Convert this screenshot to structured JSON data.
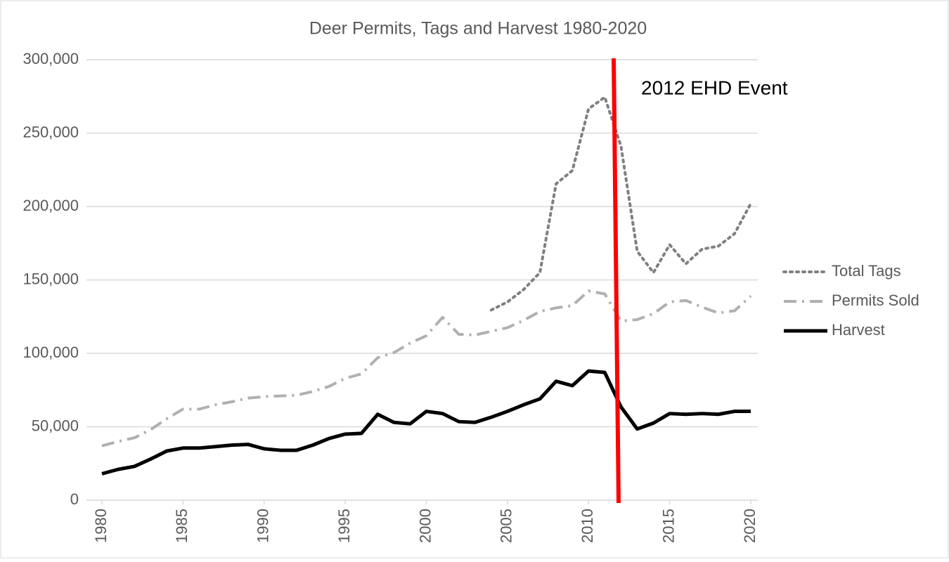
{
  "chart_data": {
    "type": "line",
    "title": "Deer Permits, Tags and Harvest 1980-2020",
    "annotation": "2012 EHD Event",
    "x": [
      1980,
      1981,
      1982,
      1983,
      1984,
      1985,
      1986,
      1987,
      1988,
      1989,
      1990,
      1991,
      1992,
      1993,
      1994,
      1995,
      1996,
      1997,
      1998,
      1999,
      2000,
      2001,
      2002,
      2003,
      2004,
      2005,
      2006,
      2007,
      2008,
      2009,
      2010,
      2011,
      2012,
      2013,
      2014,
      2015,
      2016,
      2017,
      2018,
      2019,
      2020
    ],
    "series": [
      {
        "name": "Total Tags",
        "color": "#808080",
        "dash": "dot",
        "values": [
          null,
          null,
          null,
          null,
          null,
          null,
          null,
          null,
          null,
          null,
          null,
          null,
          null,
          null,
          null,
          null,
          null,
          null,
          null,
          null,
          null,
          null,
          null,
          null,
          129500,
          135000,
          143500,
          155000,
          215500,
          224500,
          266500,
          274500,
          241000,
          169500,
          155000,
          174000,
          161000,
          171000,
          173000,
          181500,
          202000
        ]
      },
      {
        "name": "Permits Sold",
        "color": "#b0b0b0",
        "dash": "dashdot",
        "values": [
          37000,
          40000,
          42500,
          48000,
          55500,
          62000,
          62000,
          65000,
          67000,
          69500,
          70500,
          71000,
          71500,
          74000,
          77500,
          83000,
          86000,
          97000,
          100500,
          107000,
          112000,
          124500,
          113000,
          112500,
          115000,
          117500,
          122500,
          128500,
          131000,
          132500,
          142500,
          140500,
          122000,
          123000,
          127000,
          135000,
          136000,
          131500,
          127500,
          129000,
          139000
        ]
      },
      {
        "name": "Harvest",
        "color": "#000000",
        "dash": "solid",
        "values": [
          18000,
          21000,
          23000,
          28000,
          33500,
          35500,
          35500,
          36500,
          37500,
          38000,
          35000,
          34000,
          34000,
          37500,
          42000,
          45000,
          45500,
          58500,
          53000,
          52000,
          60500,
          59000,
          53500,
          53000,
          56500,
          60500,
          65000,
          69000,
          81000,
          78000,
          88000,
          87000,
          63500,
          48500,
          52500,
          59000,
          58500,
          59000,
          58500,
          60500,
          60500
        ]
      }
    ],
    "xlim": [
      1980,
      2020
    ],
    "xticks": [
      1980,
      1985,
      1990,
      1995,
      2000,
      2005,
      2010,
      2015,
      2020
    ],
    "ylim": [
      0,
      300000
    ],
    "yticks": [
      0,
      {
        "value": 50000,
        "label": "50,000"
      },
      {
        "value": 100000,
        "label": "100,000"
      },
      {
        "value": 150000,
        "label": "150,000"
      },
      {
        "value": 200000,
        "label": "200,000"
      },
      {
        "value": 250000,
        "label": "250,000"
      },
      {
        "value": 300000,
        "label": "300,000"
      }
    ],
    "grid": true,
    "legend": "right"
  }
}
